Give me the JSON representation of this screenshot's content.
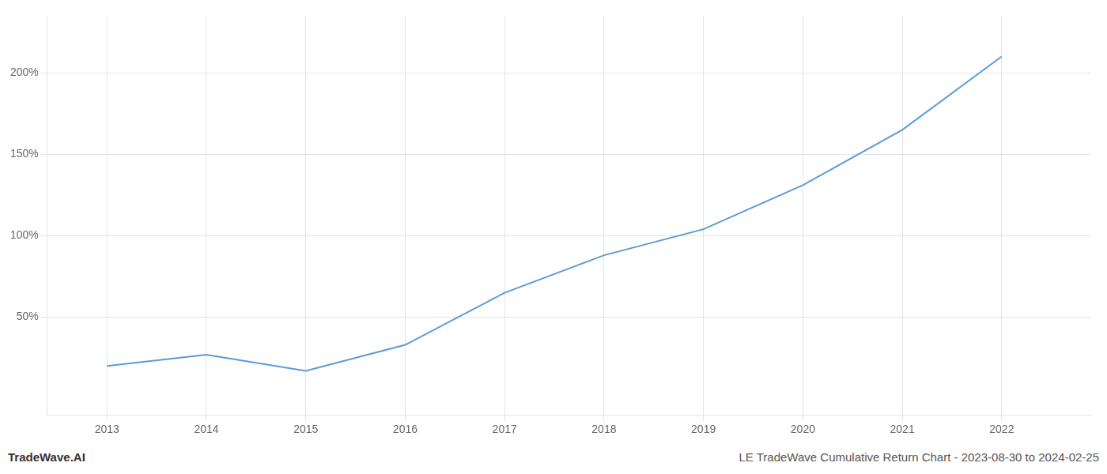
{
  "chart_data": {
    "type": "line",
    "x": [
      2013,
      2014,
      2015,
      2016,
      2017,
      2018,
      2019,
      2020,
      2021,
      2022
    ],
    "values": [
      20,
      27,
      17,
      33,
      65,
      88,
      104,
      131,
      165,
      210
    ],
    "color": "#5b9bd5",
    "xlim": [
      2012.4,
      2022.9
    ],
    "ylim": [
      -10,
      235
    ],
    "xticks": [
      2013,
      2014,
      2015,
      2016,
      2017,
      2018,
      2019,
      2020,
      2021,
      2022
    ],
    "yticks": [
      {
        "value": 50,
        "label": "50%"
      },
      {
        "value": 100,
        "label": "100%"
      },
      {
        "value": 150,
        "label": "150%"
      },
      {
        "value": 200,
        "label": "200%"
      }
    ],
    "grid": true,
    "annotations": [
      "TradeWave.AI",
      "LE TradeWave Cumulative Return Chart - 2023-08-30 to 2024-02-25"
    ]
  }
}
